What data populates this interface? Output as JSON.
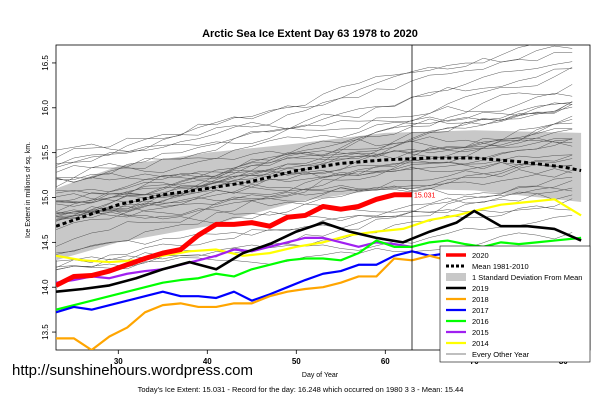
{
  "chart_data": {
    "type": "line",
    "title": "Arctic Sea Ice Extent Day 63 1978 to 2020",
    "xlabel": "Day of Year",
    "ylabel": "Ice Extent in millions of sq. km.",
    "xlim": [
      23,
      83
    ],
    "ylim": [
      13.3,
      16.7
    ],
    "xticks": [
      30,
      40,
      50,
      60,
      70,
      80
    ],
    "yticks": [
      13.5,
      14.0,
      14.5,
      15.0,
      15.5,
      16.0,
      16.5
    ],
    "ytick_labels": [
      "13.5",
      "14.0",
      "14.5",
      "15.0",
      "15.5",
      "16.0",
      "16.5"
    ],
    "current_day": 63,
    "current_value_label": "15.031",
    "mean_line": {
      "name": "Mean 1981-2010",
      "x": [
        23,
        30,
        35,
        40,
        45,
        50,
        55,
        60,
        65,
        70,
        75,
        80,
        82
      ],
      "y": [
        14.68,
        14.92,
        15.03,
        15.1,
        15.18,
        15.3,
        15.38,
        15.42,
        15.44,
        15.44,
        15.4,
        15.34,
        15.3
      ]
    },
    "std_band": {
      "name": "1 Standard Deviation From Mean",
      "x": [
        23,
        30,
        40,
        50,
        60,
        70,
        82
      ],
      "upper": [
        15.1,
        15.35,
        15.5,
        15.6,
        15.72,
        15.75,
        15.72
      ],
      "lower": [
        14.3,
        14.5,
        14.68,
        14.95,
        15.1,
        15.08,
        14.95
      ]
    },
    "series": [
      {
        "name": "2020",
        "color": "#ff0000",
        "width": 5,
        "x": [
          23,
          25,
          27,
          29,
          31,
          33,
          35,
          37,
          39,
          41,
          43,
          45,
          47,
          49,
          51,
          53,
          55,
          57,
          59,
          61,
          63
        ],
        "y": [
          14.02,
          14.12,
          14.13,
          14.18,
          14.25,
          14.32,
          14.38,
          14.42,
          14.58,
          14.7,
          14.7,
          14.72,
          14.68,
          14.78,
          14.8,
          14.9,
          14.87,
          14.9,
          14.98,
          15.03,
          15.031
        ]
      },
      {
        "name": "Mean 1981-2010",
        "color": "#000000",
        "dashed": true,
        "legend_only": true
      },
      {
        "name": "1 Standard Deviation From Mean",
        "color": "#c8c8c8",
        "band": true,
        "legend_only": true
      },
      {
        "name": "2019",
        "color": "#000000",
        "width": 2.6,
        "x": [
          23,
          26,
          29,
          32,
          35,
          38,
          41,
          44,
          47,
          50,
          53,
          56,
          59,
          62,
          65,
          68,
          70,
          73,
          76,
          79,
          82
        ],
        "y": [
          13.95,
          13.98,
          14.02,
          14.1,
          14.2,
          14.28,
          14.2,
          14.38,
          14.48,
          14.62,
          14.72,
          14.62,
          14.55,
          14.5,
          14.62,
          14.72,
          14.85,
          14.68,
          14.68,
          14.65,
          14.52
        ]
      },
      {
        "name": "2018",
        "color": "#ffa500",
        "width": 2.2,
        "x": [
          23,
          25,
          27,
          29,
          31,
          33,
          35,
          37,
          39,
          41,
          43,
          45,
          47,
          49,
          51,
          53,
          55,
          57,
          59,
          61,
          63,
          65,
          67,
          70,
          73,
          76,
          79,
          82
        ],
        "y": [
          13.43,
          13.43,
          13.3,
          13.45,
          13.55,
          13.72,
          13.8,
          13.82,
          13.78,
          13.78,
          13.82,
          13.82,
          13.9,
          13.95,
          13.98,
          14.0,
          14.05,
          14.12,
          14.12,
          14.32,
          14.3,
          14.35,
          14.3,
          14.32,
          14.4,
          14.38,
          14.25,
          14.35
        ]
      },
      {
        "name": "2017",
        "color": "#0000ff",
        "width": 2.2,
        "x": [
          23,
          25,
          27,
          29,
          31,
          33,
          35,
          37,
          39,
          41,
          43,
          45,
          47,
          49,
          51,
          53,
          55,
          57,
          59,
          61,
          63,
          65,
          67,
          69,
          71,
          73,
          75,
          77,
          79,
          82
        ],
        "y": [
          13.72,
          13.78,
          13.75,
          13.8,
          13.85,
          13.9,
          13.95,
          13.9,
          13.9,
          13.88,
          13.95,
          13.85,
          13.92,
          14.0,
          14.08,
          14.15,
          14.18,
          14.25,
          14.25,
          14.35,
          14.4,
          14.35,
          14.38,
          14.42,
          14.35,
          14.3,
          14.22,
          14.25,
          14.2,
          14.15
        ]
      },
      {
        "name": "2016",
        "color": "#00ff00",
        "width": 2.2,
        "x": [
          23,
          25,
          27,
          29,
          31,
          33,
          35,
          37,
          39,
          41,
          43,
          45,
          47,
          49,
          51,
          53,
          55,
          57,
          59,
          61,
          63,
          65,
          67,
          69,
          71,
          73,
          75,
          77,
          79,
          82
        ],
        "y": [
          13.75,
          13.8,
          13.85,
          13.9,
          13.95,
          14.0,
          14.05,
          14.08,
          14.1,
          14.15,
          14.12,
          14.2,
          14.25,
          14.3,
          14.32,
          14.32,
          14.3,
          14.38,
          14.52,
          14.45,
          14.45,
          14.5,
          14.52,
          14.48,
          14.45,
          14.5,
          14.48,
          14.5,
          14.52,
          14.55
        ]
      },
      {
        "name": "2015",
        "color": "#a020f0",
        "width": 2.2,
        "x": [
          23,
          25,
          27,
          29,
          31,
          33,
          35,
          37,
          39,
          41,
          43,
          45,
          47,
          49,
          51,
          53,
          55,
          57,
          59,
          61,
          63
        ],
        "y": [
          14.05,
          14.08,
          14.12,
          14.1,
          14.15,
          14.18,
          14.2,
          14.25,
          14.3,
          14.35,
          14.42,
          14.4,
          14.45,
          14.5,
          14.55,
          14.55,
          14.5,
          14.45,
          14.5,
          14.48,
          14.45
        ]
      },
      {
        "name": "2014",
        "color": "#ffff00",
        "width": 2.2,
        "x": [
          23,
          26,
          29,
          32,
          35,
          38,
          41,
          44,
          47,
          50,
          53,
          56,
          59,
          62,
          65,
          68,
          70,
          73,
          76,
          79,
          82
        ],
        "y": [
          14.35,
          14.3,
          14.28,
          14.3,
          14.35,
          14.4,
          14.42,
          14.35,
          14.38,
          14.45,
          14.5,
          14.58,
          14.62,
          14.65,
          14.75,
          14.8,
          14.85,
          14.92,
          14.95,
          14.98,
          14.8
        ]
      },
      {
        "name": "Every Other Year",
        "color": "#000000",
        "width": 0.6,
        "legend_only": true
      }
    ],
    "gray_years_count": 40
  },
  "footer": {
    "watermark": "http://sunshinehours.wordpress.com",
    "summary": "Today's Ice Extent: 15.031 - Record for the day: 16.248 which occurred on 1980 3 3 - Mean: 15.44"
  }
}
